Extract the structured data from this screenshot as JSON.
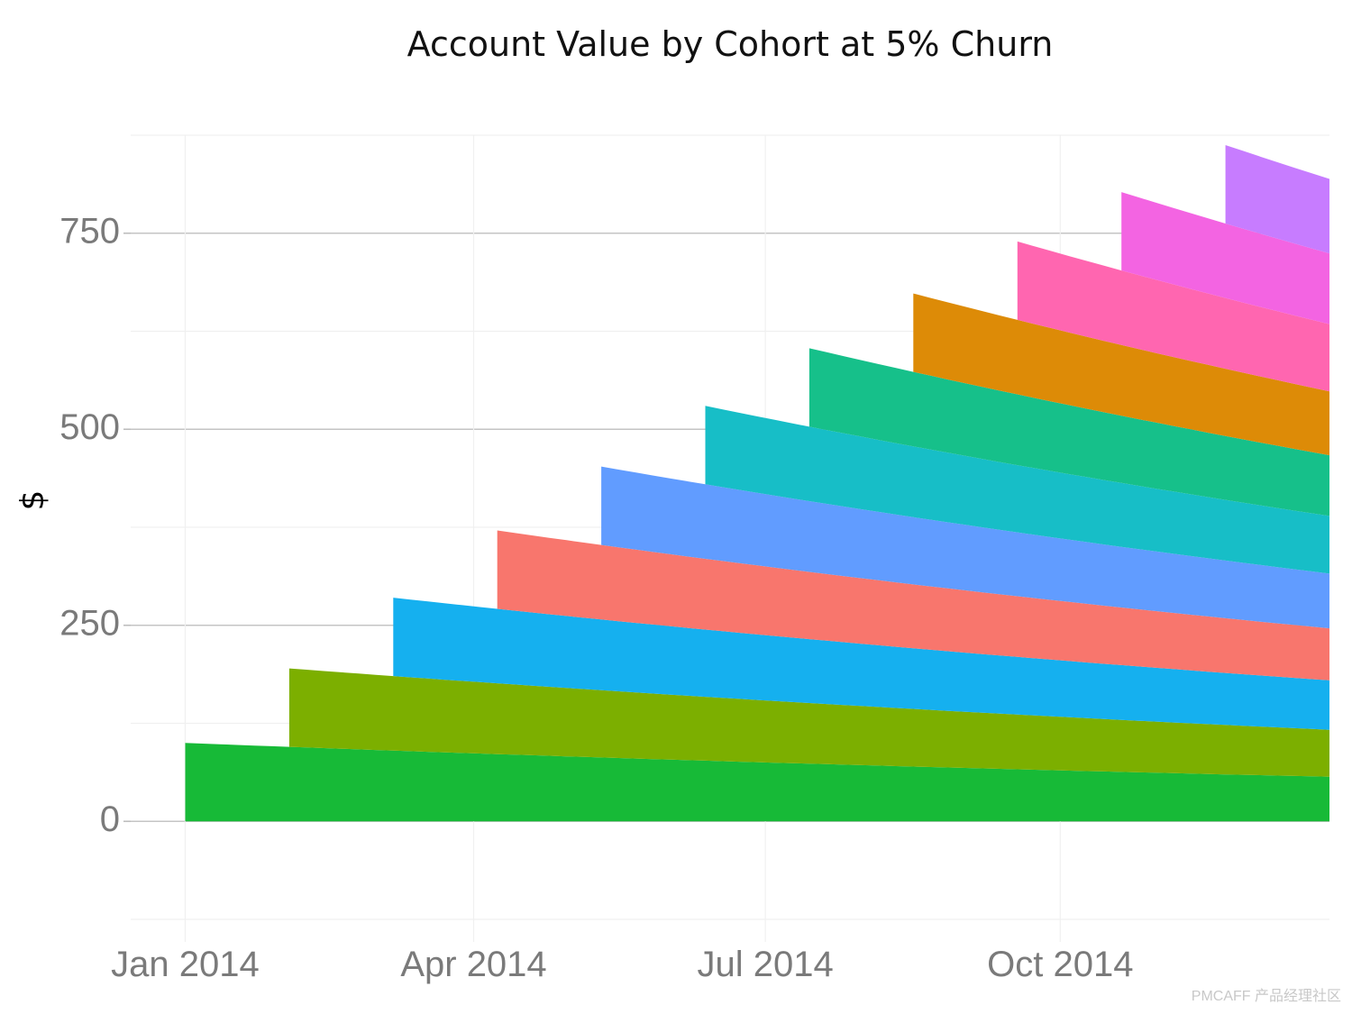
{
  "chart_data": {
    "type": "area",
    "title": "Account Value by Cohort at 5% Churn",
    "xlabel": "",
    "ylabel": "$",
    "x_ticks": [
      "Jan 2014",
      "Apr 2014",
      "Jul 2014",
      "Oct 2014"
    ],
    "x_range": [
      "2013-12-15",
      "2014-12-24"
    ],
    "y_ticks": [
      0,
      250,
      500,
      750
    ],
    "ylim": [
      -125,
      875
    ],
    "grid": true,
    "stacked": true,
    "months": [
      "2014-01",
      "2014-02",
      "2014-03",
      "2014-04",
      "2014-05",
      "2014-06",
      "2014-07",
      "2014-08",
      "2014-09",
      "2014-10",
      "2014-11",
      "2014-12"
    ],
    "series": [
      {
        "color": "#17ba37",
        "start_month": "2014-01",
        "initial": 100,
        "churn": 0.05
      },
      {
        "color": "#7caf00",
        "start_month": "2014-02",
        "initial": 100,
        "churn": 0.05
      },
      {
        "color": "#15b0ef",
        "start_month": "2014-03",
        "initial": 100,
        "churn": 0.05
      },
      {
        "color": "#f8766d",
        "start_month": "2014-04",
        "initial": 100,
        "churn": 0.05
      },
      {
        "color": "#619cff",
        "start_month": "2014-05",
        "initial": 100,
        "churn": 0.05
      },
      {
        "color": "#17bec7",
        "start_month": "2014-06",
        "initial": 100,
        "churn": 0.05
      },
      {
        "color": "#16c08a",
        "start_month": "2014-07",
        "initial": 100,
        "churn": 0.05
      },
      {
        "color": "#dd8b07",
        "start_month": "2014-08",
        "initial": 100,
        "churn": 0.05
      },
      {
        "color": "#ff66b0",
        "start_month": "2014-09",
        "initial": 100,
        "churn": 0.05
      },
      {
        "color": "#f364e2",
        "start_month": "2014-10",
        "initial": 100,
        "churn": 0.05
      },
      {
        "color": "#c77cff",
        "start_month": "2014-11",
        "initial": 100,
        "churn": 0.05
      }
    ]
  },
  "watermark": "PMCAFF 产品经理社区"
}
